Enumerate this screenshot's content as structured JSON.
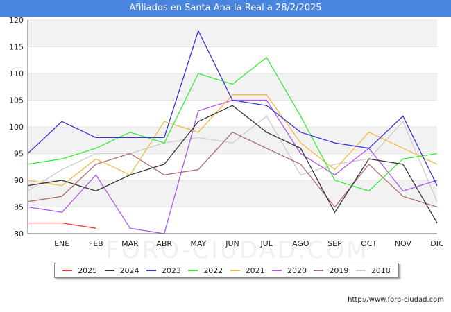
{
  "title": "Afiliados en Santa Ana la Real a 28/2/2025",
  "source_url": "http://www.foro-ciudad.com",
  "watermark": "FORO-CIUDAD.COM",
  "chart_data": {
    "type": "line",
    "categories": [
      "",
      "ENE",
      "FEB",
      "MAR",
      "ABR",
      "MAY",
      "JUN",
      "JUL",
      "AGO",
      "SEP",
      "OCT",
      "NOV",
      "DIC"
    ],
    "ylim": [
      80,
      120
    ],
    "yticks": [
      "80",
      "85",
      "90",
      "95",
      "100",
      "105",
      "110",
      "115",
      "120"
    ],
    "grid": "horizontal, alternating bands",
    "legend_position": "bottom",
    "series": [
      {
        "name": "2025",
        "color": "#ee3333",
        "values": [
          82,
          82,
          81,
          null,
          null,
          null,
          null,
          null,
          null,
          null,
          null,
          null,
          null
        ]
      },
      {
        "name": "2024",
        "color": "#333333",
        "values": [
          89,
          90,
          88,
          91,
          93,
          101,
          104,
          99,
          96,
          84,
          94,
          93,
          82
        ]
      },
      {
        "name": "2023",
        "color": "#3333dd",
        "values": [
          95,
          101,
          98,
          98,
          98,
          118,
          105,
          104,
          99,
          97,
          96,
          102,
          89
        ]
      },
      {
        "name": "2022",
        "color": "#33ee33",
        "values": [
          93,
          94,
          96,
          99,
          97,
          110,
          108,
          113,
          102,
          90,
          88,
          94,
          95
        ]
      },
      {
        "name": "2021",
        "color": "#f5b841",
        "values": [
          90,
          89,
          94,
          91,
          101,
          99,
          106,
          106,
          97,
          92,
          99,
          96,
          93
        ]
      },
      {
        "name": "2020",
        "color": "#b155e8",
        "values": [
          85,
          84,
          91,
          81,
          80,
          103,
          105,
          105,
          95,
          91,
          96,
          88,
          90
        ]
      },
      {
        "name": "2019",
        "color": "#b06b6b",
        "values": [
          86,
          87,
          93,
          95,
          91,
          92,
          99,
          96,
          93,
          85,
          93,
          87,
          85
        ]
      },
      {
        "name": "2018",
        "color": "#cccccc",
        "values": [
          88,
          92,
          95,
          95,
          97,
          98,
          97,
          102,
          91,
          93,
          94,
          101,
          86
        ]
      }
    ]
  }
}
